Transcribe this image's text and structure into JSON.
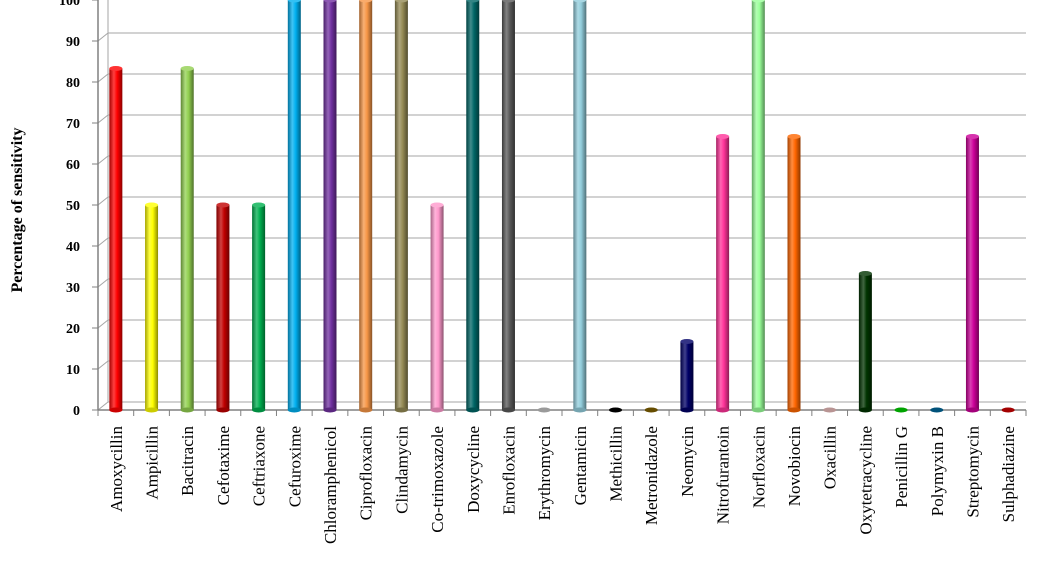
{
  "chart_data": {
    "type": "bar",
    "title": "",
    "xlabel": "",
    "ylabel": "Percentage of sensitivity",
    "ylim": [
      0,
      100
    ],
    "yticks": [
      0,
      10,
      20,
      30,
      40,
      50,
      60,
      70,
      80,
      90,
      100
    ],
    "grid": true,
    "categories": [
      "Amoxycillin",
      "Ampicillin",
      "Bacitracin",
      "Cefotaxime",
      "Ceftriaxone",
      "Cefuroxime",
      "Chloramphenicol",
      "Ciprofloxacin",
      "Clindamycin",
      "Co-trimoxazole",
      "Doxycycline",
      "Enrofloxacin",
      "Erythromycin",
      "Gentamicin",
      "Methicillin",
      "Metronidazole",
      "Neomycin",
      "Nitrofurantoin",
      "Norfloxacin",
      "Novobiocin",
      "Oxacillin",
      "Oxytetracycline",
      "Penicillin G",
      "Polymyxin B",
      "Streptomycin",
      "Sulphadiazine"
    ],
    "values": [
      83.3,
      50,
      83.3,
      50,
      50,
      100,
      100,
      100,
      100,
      50,
      100,
      100,
      0,
      100,
      0,
      0,
      16.7,
      66.7,
      100,
      66.7,
      0,
      33.3,
      0,
      0,
      66.7,
      0
    ],
    "colors": [
      "#ff0000",
      "#ffff00",
      "#92d050",
      "#c00000",
      "#00b050",
      "#00b0f0",
      "#7030a0",
      "#f79646",
      "#948a54",
      "#ff99cc",
      "#006666",
      "#595959",
      "#c0c0c0",
      "#92cddc",
      "#000000",
      "#7f6000",
      "#000066",
      "#ff3399",
      "#99ff99",
      "#ff6600",
      "#e6b9b8",
      "#003300",
      "#00cc00",
      "#006699",
      "#cc0099",
      "#cc0000"
    ]
  }
}
